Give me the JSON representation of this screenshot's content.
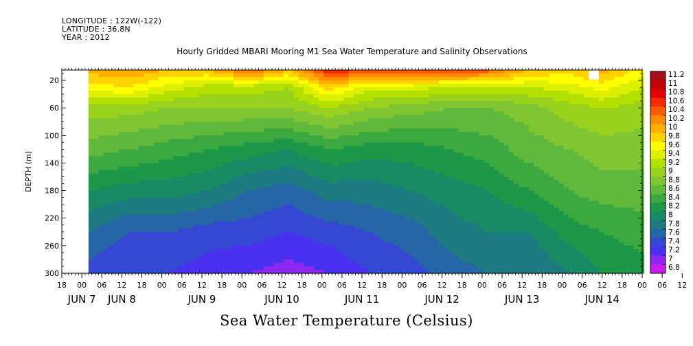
{
  "header": {
    "longitude": "LONGITUDE : 122W(-122)",
    "latitude": "LATITUDE : 36.8N",
    "year": "YEAR : 2012"
  },
  "chart_data": {
    "type": "heatmap",
    "title": "Hourly Gridded MBARI Mooring M1 Sea Water Temperature and Salinity Observations",
    "caption": "Sea Water Temperature (Celsius)",
    "ylabel": "DEPTH (m)",
    "y_axis": {
      "ticks": [
        20,
        60,
        100,
        140,
        180,
        220,
        260,
        300
      ],
      "range": [
        5,
        300
      ],
      "reversed": true
    },
    "x_axis": {
      "range_hours": [
        0,
        174
      ],
      "hour_labels": [
        "18",
        "00",
        "06",
        "12",
        "18",
        "00",
        "06",
        "12",
        "18",
        "00",
        "06",
        "12",
        "18",
        "00",
        "06",
        "12",
        "18",
        "00",
        "06",
        "12",
        "18",
        "00",
        "06",
        "12",
        "18",
        "00",
        "06",
        "12",
        "18",
        "00",
        "06",
        "12",
        "18"
      ],
      "day_labels": [
        {
          "text": "JUN  7",
          "hour": 6
        },
        {
          "text": "JUN  8",
          "hour": 18
        },
        {
          "text": "JUN  9",
          "hour": 42
        },
        {
          "text": "JUN 10",
          "hour": 66
        },
        {
          "text": "JUN 11",
          "hour": 90
        },
        {
          "text": "JUN 12",
          "hour": 114
        },
        {
          "text": "JUN 13",
          "hour": 138
        },
        {
          "text": "JUN 14",
          "hour": 162
        }
      ]
    },
    "data_start_hour": 8,
    "legend": {
      "placement": "right",
      "labels": [
        "11.2",
        "11",
        "10.8",
        "10.6",
        "10.4",
        "10.2",
        "10",
        "9.8",
        "9.6",
        "9.4",
        "9.2",
        "9",
        "8.8",
        "8.6",
        "8.4",
        "8.2",
        "8",
        "7.8",
        "7.6",
        "7.4",
        "7.2",
        "7",
        "6.8"
      ],
      "colors": [
        "#a50f15",
        "#c40000",
        "#e00000",
        "#f52a00",
        "#ff5a00",
        "#ff8a00",
        "#ffae00",
        "#ffd200",
        "#ffff00",
        "#dcf000",
        "#b4e000",
        "#98d21c",
        "#80c632",
        "#60b83c",
        "#3ca840",
        "#1c9848",
        "#188a64",
        "#1c7a80",
        "#2566a8",
        "#3448d4",
        "#4a30f0",
        "#8c28f0",
        "#cc1af0"
      ]
    },
    "profiles": [
      {
        "hour": 8,
        "depth_temp": [
          [
            5,
            9.9
          ],
          [
            30,
            9.5
          ],
          [
            60,
            8.9
          ],
          [
            120,
            8.5
          ],
          [
            180,
            8.0
          ],
          [
            240,
            7.6
          ],
          [
            300,
            7.3
          ]
        ]
      },
      {
        "hour": 20,
        "depth_temp": [
          [
            5,
            10.0
          ],
          [
            30,
            9.6
          ],
          [
            60,
            8.9
          ],
          [
            120,
            8.4
          ],
          [
            180,
            7.9
          ],
          [
            240,
            7.4
          ],
          [
            300,
            7.2
          ]
        ]
      },
      {
        "hour": 32,
        "depth_temp": [
          [
            5,
            9.8
          ],
          [
            30,
            9.3
          ],
          [
            60,
            8.8
          ],
          [
            120,
            8.3
          ],
          [
            180,
            7.9
          ],
          [
            240,
            7.4
          ],
          [
            300,
            7.2
          ]
        ]
      },
      {
        "hour": 44,
        "depth_temp": [
          [
            5,
            9.8
          ],
          [
            30,
            9.1
          ],
          [
            60,
            8.8
          ],
          [
            120,
            8.2
          ],
          [
            180,
            7.8
          ],
          [
            240,
            7.3
          ],
          [
            300,
            7.1
          ]
        ]
      },
      {
        "hour": 56,
        "depth_temp": [
          [
            5,
            10.3
          ],
          [
            30,
            9.1
          ],
          [
            60,
            8.8
          ],
          [
            120,
            8.1
          ],
          [
            180,
            7.6
          ],
          [
            240,
            7.3
          ],
          [
            300,
            7.0
          ]
        ]
      },
      {
        "hour": 68,
        "depth_temp": [
          [
            5,
            9.8
          ],
          [
            30,
            9.0
          ],
          [
            60,
            8.8
          ],
          [
            120,
            8.0
          ],
          [
            180,
            7.5
          ],
          [
            240,
            7.2
          ],
          [
            300,
            6.9
          ]
        ]
      },
      {
        "hour": 80,
        "depth_temp": [
          [
            5,
            10.6
          ],
          [
            30,
            9.7
          ],
          [
            60,
            9.0
          ],
          [
            120,
            8.2
          ],
          [
            180,
            7.7
          ],
          [
            240,
            7.3
          ],
          [
            300,
            7.0
          ]
        ]
      },
      {
        "hour": 92,
        "depth_temp": [
          [
            5,
            10.4
          ],
          [
            30,
            9.3
          ],
          [
            60,
            8.8
          ],
          [
            120,
            8.1
          ],
          [
            180,
            7.7
          ],
          [
            240,
            7.4
          ],
          [
            300,
            7.2
          ]
        ]
      },
      {
        "hour": 104,
        "depth_temp": [
          [
            5,
            10.4
          ],
          [
            30,
            9.3
          ],
          [
            60,
            8.7
          ],
          [
            120,
            8.1
          ],
          [
            180,
            7.8
          ],
          [
            240,
            7.5
          ],
          [
            300,
            7.3
          ]
        ]
      },
      {
        "hour": 116,
        "depth_temp": [
          [
            5,
            10.5
          ],
          [
            30,
            9.2
          ],
          [
            60,
            8.6
          ],
          [
            120,
            8.2
          ],
          [
            180,
            7.9
          ],
          [
            240,
            7.7
          ],
          [
            300,
            7.5
          ]
        ]
      },
      {
        "hour": 128,
        "depth_temp": [
          [
            5,
            10.3
          ],
          [
            30,
            9.2
          ],
          [
            60,
            8.6
          ],
          [
            120,
            8.3
          ],
          [
            180,
            8.0
          ],
          [
            240,
            7.8
          ],
          [
            300,
            7.6
          ]
        ]
      },
      {
        "hour": 140,
        "depth_temp": [
          [
            5,
            9.8
          ],
          [
            30,
            9.2
          ],
          [
            60,
            8.7
          ],
          [
            120,
            8.5
          ],
          [
            180,
            8.2
          ],
          [
            240,
            7.8
          ],
          [
            300,
            7.6
          ]
        ]
      },
      {
        "hour": 152,
        "depth_temp": [
          [
            5,
            9.7
          ],
          [
            30,
            9.3
          ],
          [
            60,
            8.9
          ],
          [
            120,
            8.6
          ],
          [
            180,
            8.4
          ],
          [
            240,
            8.1
          ],
          [
            300,
            7.8
          ]
        ]
      },
      {
        "hour": 162,
        "depth_temp": [
          [
            5,
            9.9
          ],
          [
            30,
            9.5
          ],
          [
            60,
            9.0
          ],
          [
            120,
            8.7
          ],
          [
            180,
            8.5
          ],
          [
            240,
            8.2
          ],
          [
            300,
            8.0
          ]
        ]
      },
      {
        "hour": 174,
        "depth_temp": [
          [
            5,
            9.5
          ],
          [
            30,
            9.2
          ],
          [
            60,
            8.9
          ],
          [
            120,
            8.7
          ],
          [
            180,
            8.5
          ],
          [
            240,
            8.3
          ],
          [
            300,
            8.1
          ]
        ]
      }
    ],
    "gap": {
      "hour_start": 158,
      "hour_end": 161,
      "depth_start": 5,
      "depth_end": 19
    }
  }
}
